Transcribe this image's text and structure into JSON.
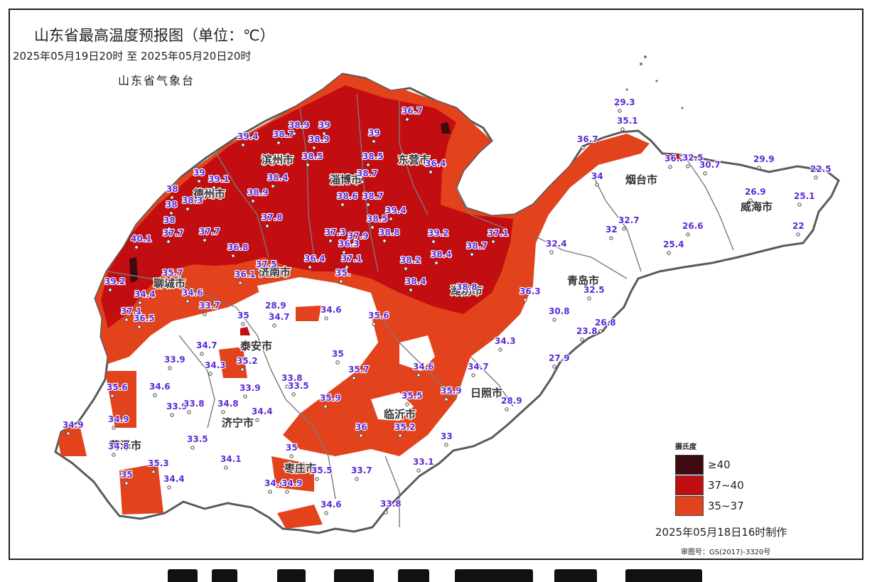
{
  "title": "山东省最高温度预报图（单位：℃）",
  "period": "2025年05月19日20时  至  2025年05月20日20时",
  "agency": "山东省气象台",
  "legend": {
    "title": "摄氏度",
    "items": [
      {
        "label": "≥40",
        "color": "#3d0a0f"
      },
      {
        "label": "37~40",
        "color": "#c20e10"
      },
      {
        "label": "35~37",
        "color": "#e2431d"
      }
    ]
  },
  "made_time": "2025年05月18日16时制作",
  "review_no": "审图号：GS(2017)-3320号",
  "colors": {
    "outline": "#6e6e6e",
    "land": "#ffffff",
    "cold": "#ffffff"
  },
  "cities": [
    {
      "id": "jinan",
      "name": "济南市"
    },
    {
      "id": "zibo",
      "name": "淄博市"
    },
    {
      "id": "dongying",
      "name": "东营市"
    },
    {
      "id": "liaocheng",
      "name": "聊城市"
    },
    {
      "id": "taian",
      "name": "泰安市"
    },
    {
      "id": "weifang",
      "name": "潍坊市"
    },
    {
      "id": "yantai",
      "name": "烟台市"
    },
    {
      "id": "weihai",
      "name": "威海市"
    },
    {
      "id": "qingdao",
      "name": "青岛市"
    },
    {
      "id": "rizhao",
      "name": "日照市"
    },
    {
      "id": "linyi",
      "name": "临沂市"
    },
    {
      "id": "jining",
      "name": "济宁市"
    },
    {
      "id": "heze",
      "name": "菏泽市"
    },
    {
      "id": "zaozhuang",
      "name": "枣庄市"
    },
    {
      "id": "dezhou",
      "name": "德州市"
    },
    {
      "id": "binzhou",
      "name": "滨州市"
    }
  ],
  "temperatures": [
    {
      "id": "t01",
      "value": "39.4"
    },
    {
      "id": "t02",
      "value": "38.7"
    },
    {
      "id": "t03",
      "value": "38.9"
    },
    {
      "id": "t04",
      "value": "39"
    },
    {
      "id": "t05",
      "value": "38.9"
    },
    {
      "id": "t06",
      "value": "39"
    },
    {
      "id": "t07",
      "value": "36.7"
    },
    {
      "id": "t08",
      "value": "38.5"
    },
    {
      "id": "t09",
      "value": "38.5"
    },
    {
      "id": "t10",
      "value": "36.4"
    },
    {
      "id": "t11",
      "value": "39"
    },
    {
      "id": "t12",
      "value": "39.1"
    },
    {
      "id": "t13",
      "value": "38.4"
    },
    {
      "id": "t14",
      "value": "38.7"
    },
    {
      "id": "t15",
      "value": "38"
    },
    {
      "id": "t16",
      "value": "38.9"
    },
    {
      "id": "t17",
      "value": "38.6"
    },
    {
      "id": "t18",
      "value": "38.7"
    },
    {
      "id": "t19",
      "value": "38.3"
    },
    {
      "id": "t20",
      "value": "38"
    },
    {
      "id": "t21",
      "value": "38"
    },
    {
      "id": "t22",
      "value": "39.4"
    },
    {
      "id": "t23",
      "value": "37.7"
    },
    {
      "id": "t24",
      "value": "37.7"
    },
    {
      "id": "t25",
      "value": "37.8"
    },
    {
      "id": "t26",
      "value": "38.5"
    },
    {
      "id": "t27",
      "value": "37.3"
    },
    {
      "id": "t28",
      "value": "37.9"
    },
    {
      "id": "t29",
      "value": "38.8"
    },
    {
      "id": "t30",
      "value": "39.2"
    },
    {
      "id": "t31",
      "value": "37.1"
    },
    {
      "id": "t32",
      "value": "40.1"
    },
    {
      "id": "t33",
      "value": "36.8"
    },
    {
      "id": "t34",
      "value": "36.3"
    },
    {
      "id": "t35",
      "value": "38.2"
    },
    {
      "id": "t36",
      "value": "38.4"
    },
    {
      "id": "t37",
      "value": "38.7"
    },
    {
      "id": "t38",
      "value": "37.5"
    },
    {
      "id": "t39",
      "value": "36.4"
    },
    {
      "id": "t40",
      "value": "37.1"
    },
    {
      "id": "t41",
      "value": "35.7"
    },
    {
      "id": "t42",
      "value": "36.1"
    },
    {
      "id": "t43",
      "value": "35."
    },
    {
      "id": "t44",
      "value": "39.2"
    },
    {
      "id": "t45",
      "value": "38.4"
    },
    {
      "id": "t46",
      "value": "38.8"
    },
    {
      "id": "t47",
      "value": "34.4"
    },
    {
      "id": "t48",
      "value": "34.6"
    },
    {
      "id": "t49",
      "value": "33.7"
    },
    {
      "id": "t50",
      "value": "37.1"
    },
    {
      "id": "t51",
      "value": "36.5"
    },
    {
      "id": "t52",
      "value": "35"
    },
    {
      "id": "t53",
      "value": "28.9"
    },
    {
      "id": "t54",
      "value": "34.7"
    },
    {
      "id": "t55",
      "value": "34.6"
    },
    {
      "id": "t56",
      "value": "35.6"
    },
    {
      "id": "t57",
      "value": "36.3"
    },
    {
      "id": "t58",
      "value": "34.7"
    },
    {
      "id": "t59",
      "value": "33.9"
    },
    {
      "id": "t60",
      "value": "34.3"
    },
    {
      "id": "t61",
      "value": "35.2"
    },
    {
      "id": "t62",
      "value": "35"
    },
    {
      "id": "t63",
      "value": "35.7"
    },
    {
      "id": "t64",
      "value": "34.6"
    },
    {
      "id": "t65",
      "value": "34.7"
    },
    {
      "id": "t66",
      "value": "34.3"
    },
    {
      "id": "t67",
      "value": "33.8"
    },
    {
      "id": "t68",
      "value": "33.5"
    },
    {
      "id": "t69",
      "value": "33.9"
    },
    {
      "id": "t70",
      "value": "35.6"
    },
    {
      "id": "t71",
      "value": "34.6"
    },
    {
      "id": "t72",
      "value": "33.9"
    },
    {
      "id": "t73",
      "value": "33.8"
    },
    {
      "id": "t74",
      "value": "34.8"
    },
    {
      "id": "t75",
      "value": "34.4"
    },
    {
      "id": "t76",
      "value": "35.9"
    },
    {
      "id": "t77",
      "value": "35.5"
    },
    {
      "id": "t78",
      "value": "35.9"
    },
    {
      "id": "t79",
      "value": "34.9"
    },
    {
      "id": "t80",
      "value": "34.9"
    },
    {
      "id": "t81",
      "value": "34.8"
    },
    {
      "id": "t82",
      "value": "36"
    },
    {
      "id": "t83",
      "value": "35.2"
    },
    {
      "id": "t84",
      "value": "33"
    },
    {
      "id": "t85",
      "value": "28.9"
    },
    {
      "id": "t86",
      "value": "33.5"
    },
    {
      "id": "t87",
      "value": "35"
    },
    {
      "id": "t88",
      "value": "34.1"
    },
    {
      "id": "t89",
      "value": "35.3"
    },
    {
      "id": "t90",
      "value": "35"
    },
    {
      "id": "t91",
      "value": "34.4"
    },
    {
      "id": "t92",
      "value": "35.5"
    },
    {
      "id": "t93",
      "value": "33.7"
    },
    {
      "id": "t94",
      "value": "33.1"
    },
    {
      "id": "t95",
      "value": "34.4"
    },
    {
      "id": "t96",
      "value": "34.9"
    },
    {
      "id": "t97",
      "value": "34.6"
    },
    {
      "id": "t98",
      "value": "33.8"
    },
    {
      "id": "t99",
      "value": "29.3"
    },
    {
      "id": "t100",
      "value": "35.1"
    },
    {
      "id": "t101",
      "value": "36.7"
    },
    {
      "id": "t102",
      "value": "34"
    },
    {
      "id": "t103",
      "value": "36.2"
    },
    {
      "id": "t104",
      "value": "32.5"
    },
    {
      "id": "t105",
      "value": "30.7"
    },
    {
      "id": "t106",
      "value": "29.9"
    },
    {
      "id": "t107",
      "value": "22.5"
    },
    {
      "id": "t108",
      "value": "26.9"
    },
    {
      "id": "t109",
      "value": "25.1"
    },
    {
      "id": "t110",
      "value": "22"
    },
    {
      "id": "t111",
      "value": "32.7"
    },
    {
      "id": "t112",
      "value": "32"
    },
    {
      "id": "t113",
      "value": "26.6"
    },
    {
      "id": "t114",
      "value": "32.4"
    },
    {
      "id": "t115",
      "value": "25.4"
    },
    {
      "id": "t116",
      "value": "32.5"
    },
    {
      "id": "t117",
      "value": "30.8"
    },
    {
      "id": "t118",
      "value": "26.8"
    },
    {
      "id": "t119",
      "value": "23.8"
    },
    {
      "id": "t120",
      "value": "27.9"
    }
  ]
}
